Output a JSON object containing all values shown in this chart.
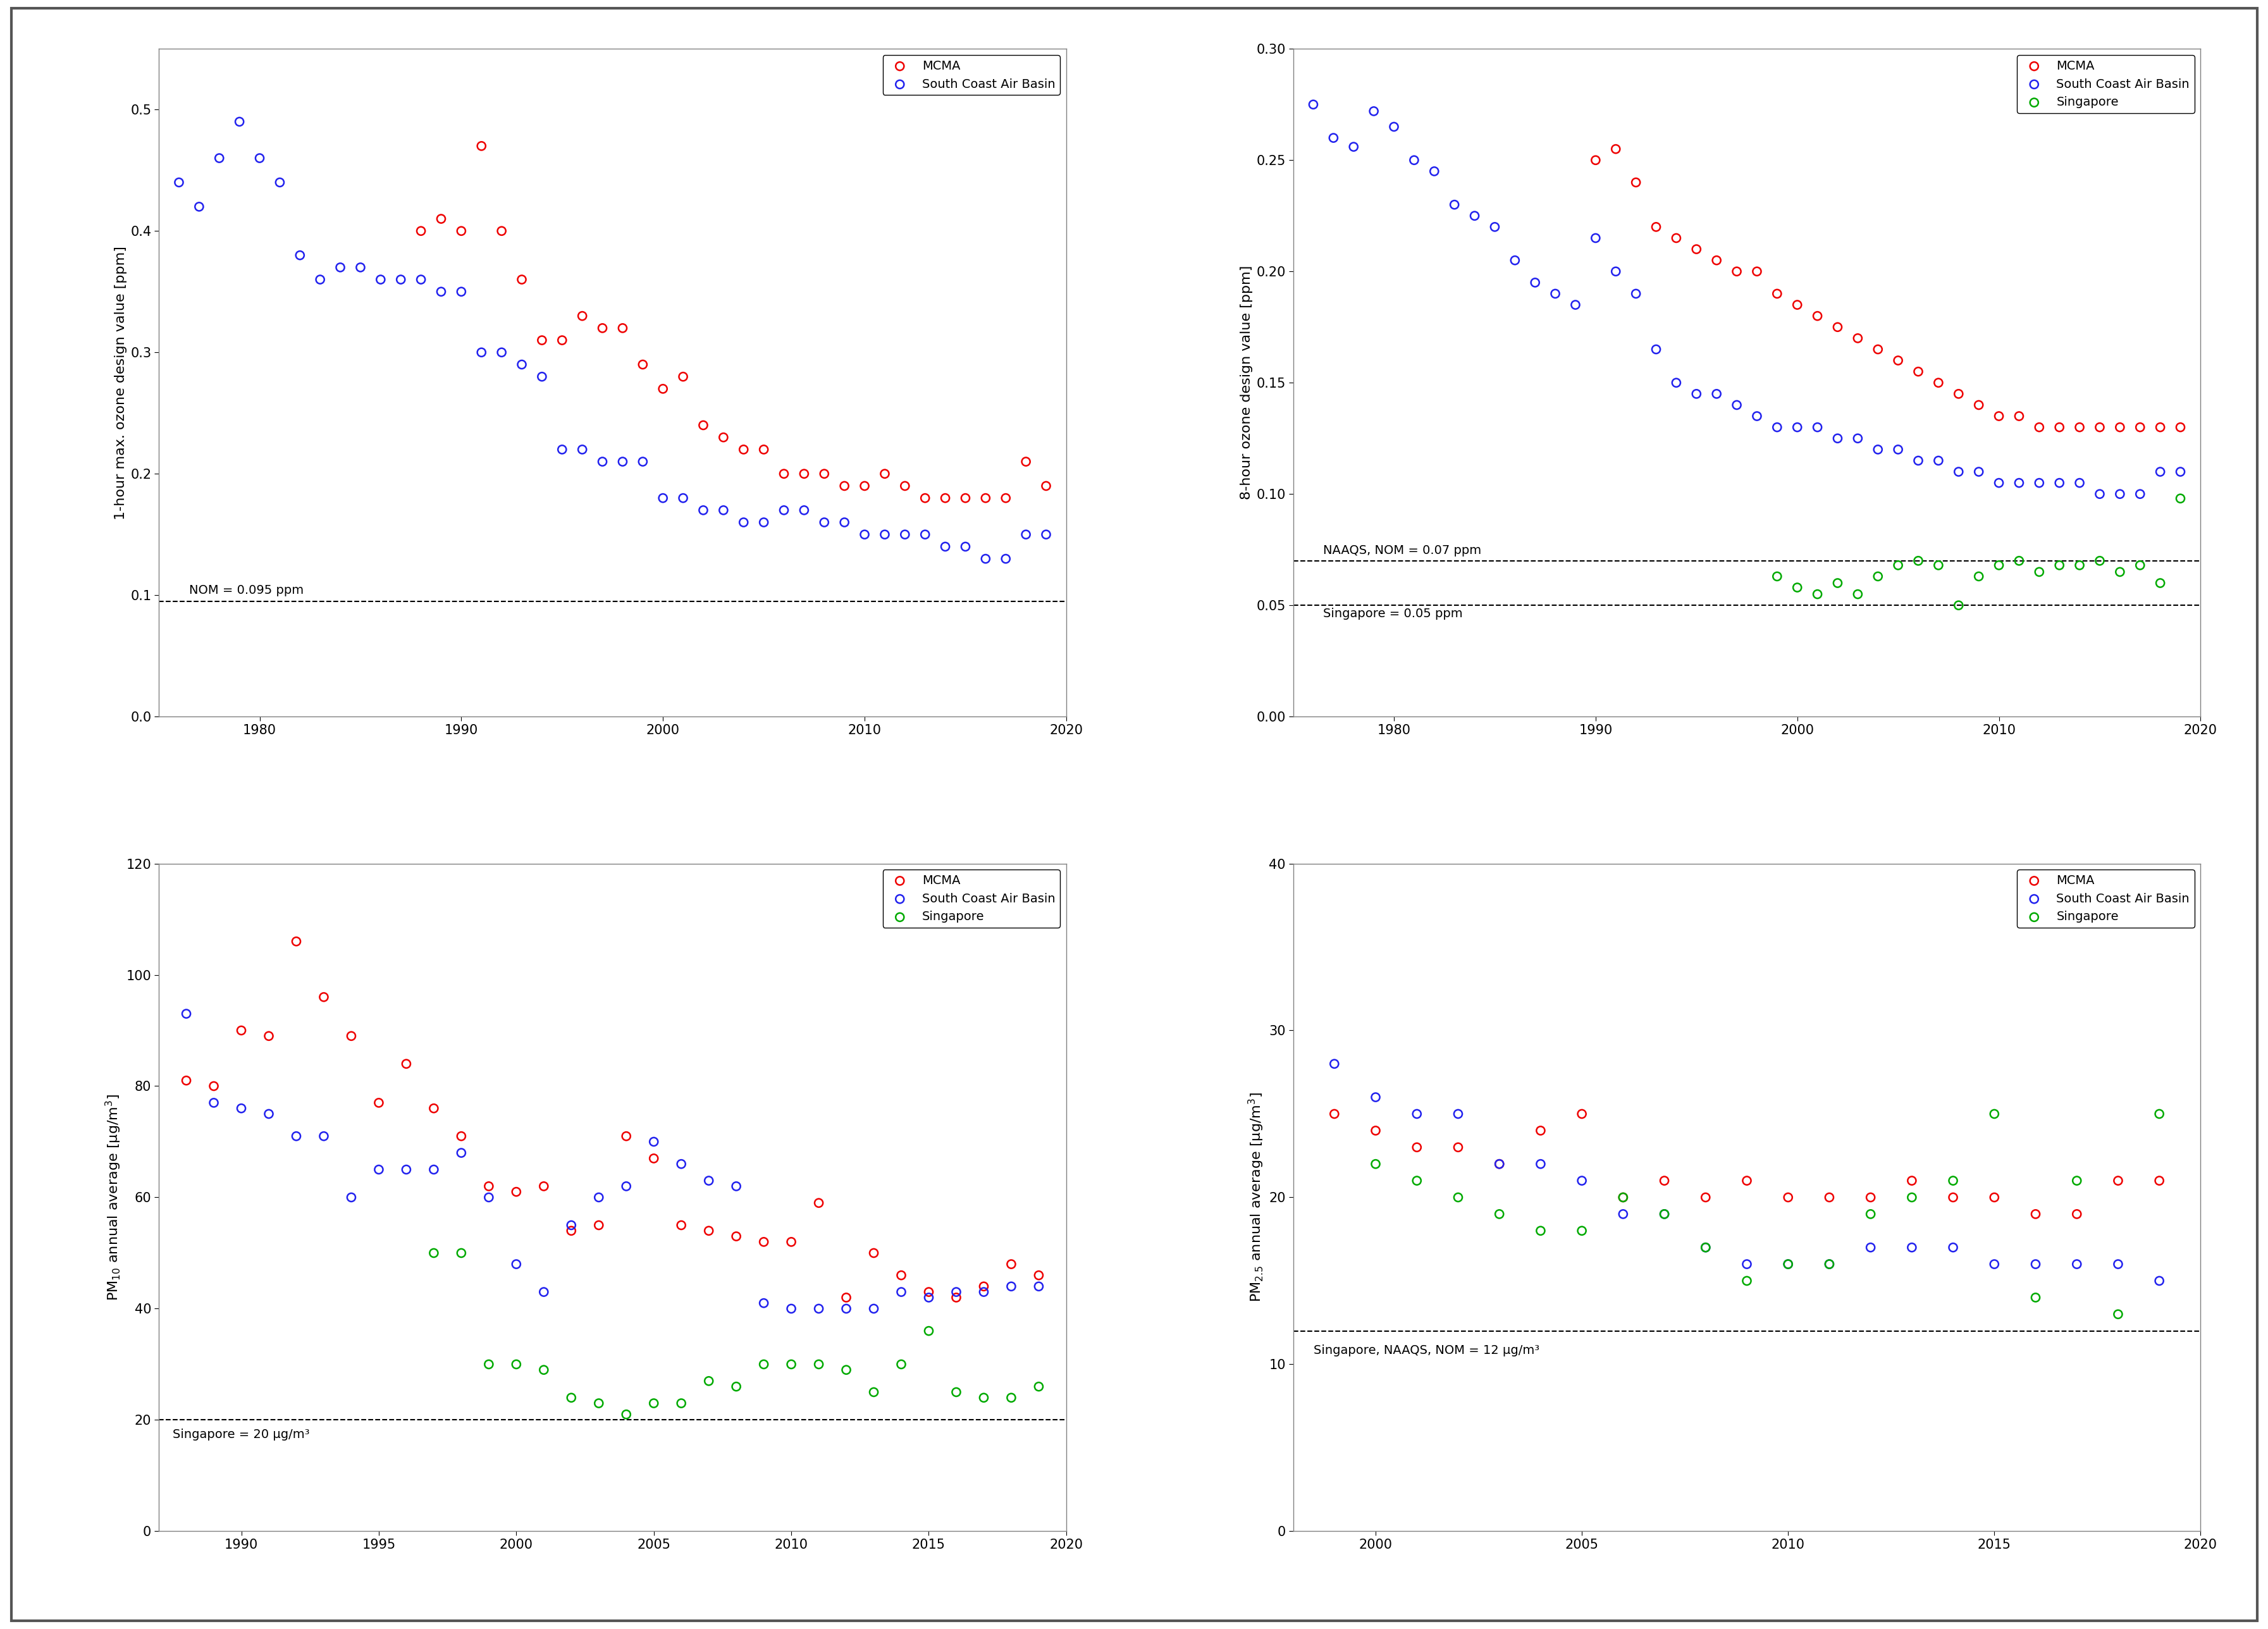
{
  "panel1": {
    "ylabel": "1-hour max. ozone design value [ppm]",
    "xlim": [
      1975,
      2020
    ],
    "ylim": [
      0.0,
      0.55
    ],
    "yticks": [
      0.0,
      0.1,
      0.2,
      0.3,
      0.4,
      0.5
    ],
    "xticks": [
      1980,
      1990,
      2000,
      2010,
      2020
    ],
    "hline": 0.095,
    "hline_label": "NOM = 0.095 ppm",
    "mcma_x": [
      1988,
      1989,
      1990,
      1991,
      1992,
      1993,
      1994,
      1995,
      1996,
      1997,
      1998,
      1999,
      2000,
      2001,
      2002,
      2003,
      2004,
      2005,
      2006,
      2007,
      2008,
      2009,
      2010,
      2011,
      2012,
      2013,
      2014,
      2015,
      2016,
      2017,
      2018,
      2019
    ],
    "mcma_y": [
      0.4,
      0.41,
      0.4,
      0.47,
      0.4,
      0.36,
      0.31,
      0.31,
      0.33,
      0.32,
      0.32,
      0.29,
      0.27,
      0.28,
      0.24,
      0.23,
      0.22,
      0.22,
      0.2,
      0.2,
      0.2,
      0.19,
      0.19,
      0.2,
      0.19,
      0.18,
      0.18,
      0.18,
      0.18,
      0.18,
      0.21,
      0.19
    ],
    "scab_x": [
      1976,
      1977,
      1978,
      1979,
      1980,
      1981,
      1982,
      1983,
      1984,
      1985,
      1986,
      1987,
      1988,
      1989,
      1990,
      1991,
      1992,
      1993,
      1994,
      1995,
      1996,
      1997,
      1998,
      1999,
      2000,
      2001,
      2002,
      2003,
      2004,
      2005,
      2006,
      2007,
      2008,
      2009,
      2010,
      2011,
      2012,
      2013,
      2014,
      2015,
      2016,
      2017,
      2018,
      2019
    ],
    "scab_y": [
      0.44,
      0.42,
      0.46,
      0.49,
      0.46,
      0.44,
      0.38,
      0.36,
      0.37,
      0.37,
      0.36,
      0.36,
      0.36,
      0.35,
      0.35,
      0.3,
      0.3,
      0.29,
      0.28,
      0.22,
      0.22,
      0.21,
      0.21,
      0.21,
      0.18,
      0.18,
      0.17,
      0.17,
      0.16,
      0.16,
      0.17,
      0.17,
      0.16,
      0.16,
      0.15,
      0.15,
      0.15,
      0.15,
      0.14,
      0.14,
      0.13,
      0.13,
      0.15,
      0.15
    ]
  },
  "panel2": {
    "ylabel": "8-hour ozone design value [ppm]",
    "xlim": [
      1975,
      2020
    ],
    "ylim": [
      0.0,
      0.3
    ],
    "yticks": [
      0.0,
      0.05,
      0.1,
      0.15,
      0.2,
      0.25,
      0.3
    ],
    "xticks": [
      1980,
      1990,
      2000,
      2010,
      2020
    ],
    "hline1": 0.07,
    "hline1_label": "NAAQS, NOM = 0.07 ppm",
    "hline2": 0.05,
    "hline2_label": "Singapore = 0.05 ppm",
    "mcma_x": [
      1990,
      1991,
      1992,
      1993,
      1994,
      1995,
      1996,
      1997,
      1998,
      1999,
      2000,
      2001,
      2002,
      2003,
      2004,
      2005,
      2006,
      2007,
      2008,
      2009,
      2010,
      2011,
      2012,
      2013,
      2014,
      2015,
      2016,
      2017,
      2018,
      2019
    ],
    "mcma_y": [
      0.25,
      0.255,
      0.24,
      0.22,
      0.215,
      0.21,
      0.205,
      0.2,
      0.2,
      0.19,
      0.185,
      0.18,
      0.175,
      0.17,
      0.165,
      0.16,
      0.155,
      0.15,
      0.145,
      0.14,
      0.135,
      0.135,
      0.13,
      0.13,
      0.13,
      0.13,
      0.13,
      0.13,
      0.13,
      0.13
    ],
    "scab_x": [
      1976,
      1977,
      1978,
      1979,
      1980,
      1981,
      1982,
      1983,
      1984,
      1985,
      1986,
      1987,
      1988,
      1989,
      1990,
      1991,
      1992,
      1993,
      1994,
      1995,
      1996,
      1997,
      1998,
      1999,
      2000,
      2001,
      2002,
      2003,
      2004,
      2005,
      2006,
      2007,
      2008,
      2009,
      2010,
      2011,
      2012,
      2013,
      2014,
      2015,
      2016,
      2017,
      2018,
      2019
    ],
    "scab_y": [
      0.275,
      0.26,
      0.256,
      0.272,
      0.265,
      0.25,
      0.245,
      0.23,
      0.225,
      0.22,
      0.205,
      0.195,
      0.19,
      0.185,
      0.215,
      0.2,
      0.19,
      0.165,
      0.15,
      0.145,
      0.145,
      0.14,
      0.135,
      0.13,
      0.13,
      0.13,
      0.125,
      0.125,
      0.12,
      0.12,
      0.115,
      0.115,
      0.11,
      0.11,
      0.105,
      0.105,
      0.105,
      0.105,
      0.105,
      0.1,
      0.1,
      0.1,
      0.11,
      0.11
    ],
    "sing_x": [
      1999,
      2000,
      2001,
      2002,
      2003,
      2004,
      2005,
      2006,
      2007,
      2008,
      2009,
      2010,
      2011,
      2012,
      2013,
      2014,
      2015,
      2016,
      2017,
      2018,
      2019
    ],
    "sing_y": [
      0.063,
      0.058,
      0.055,
      0.06,
      0.055,
      0.063,
      0.068,
      0.07,
      0.068,
      0.05,
      0.063,
      0.068,
      0.07,
      0.065,
      0.068,
      0.068,
      0.07,
      0.065,
      0.068,
      0.06,
      0.098
    ]
  },
  "panel3": {
    "ylabel": "PM$_{10}$ annual average [μg/m$^3$]",
    "xlim": [
      1987,
      2020
    ],
    "ylim": [
      0,
      120
    ],
    "yticks": [
      0,
      20,
      40,
      60,
      80,
      100,
      120
    ],
    "xticks": [
      1990,
      1995,
      2000,
      2005,
      2010,
      2015,
      2020
    ],
    "hline": 20,
    "hline_label": "Singapore = 20 μg/m³",
    "mcma_x": [
      1988,
      1989,
      1990,
      1991,
      1992,
      1993,
      1994,
      1995,
      1996,
      1997,
      1998,
      1999,
      2000,
      2001,
      2002,
      2003,
      2004,
      2005,
      2006,
      2007,
      2008,
      2009,
      2010,
      2011,
      2012,
      2013,
      2014,
      2015,
      2016,
      2017,
      2018,
      2019
    ],
    "mcma_y": [
      81,
      80,
      90,
      89,
      106,
      96,
      89,
      77,
      84,
      76,
      71,
      62,
      61,
      62,
      54,
      55,
      71,
      67,
      55,
      54,
      53,
      52,
      52,
      59,
      42,
      50,
      46,
      43,
      42,
      44,
      48,
      46
    ],
    "scab_x": [
      1988,
      1989,
      1990,
      1991,
      1992,
      1993,
      1994,
      1995,
      1996,
      1997,
      1998,
      1999,
      2000,
      2001,
      2002,
      2003,
      2004,
      2005,
      2006,
      2007,
      2008,
      2009,
      2010,
      2011,
      2012,
      2013,
      2014,
      2015,
      2016,
      2017,
      2018,
      2019
    ],
    "scab_y": [
      93,
      77,
      76,
      75,
      71,
      71,
      60,
      65,
      65,
      65,
      68,
      60,
      48,
      43,
      55,
      60,
      62,
      70,
      66,
      63,
      62,
      41,
      40,
      40,
      40,
      40,
      43,
      42,
      43,
      43,
      44,
      44
    ],
    "sing_x": [
      1997,
      1998,
      1999,
      2000,
      2001,
      2002,
      2003,
      2004,
      2005,
      2006,
      2007,
      2008,
      2009,
      2010,
      2011,
      2012,
      2013,
      2014,
      2015,
      2016,
      2017,
      2018,
      2019
    ],
    "sing_y": [
      50,
      50,
      30,
      30,
      29,
      24,
      23,
      21,
      23,
      23,
      27,
      26,
      30,
      30,
      30,
      29,
      25,
      30,
      36,
      25,
      24,
      24,
      26
    ]
  },
  "panel4": {
    "ylabel": "PM$_{2.5}$ annual average [μg/m$^3$]",
    "xlim": [
      1998,
      2020
    ],
    "ylim": [
      0,
      40
    ],
    "yticks": [
      0,
      10,
      20,
      30,
      40
    ],
    "xticks": [
      2000,
      2005,
      2010,
      2015,
      2020
    ],
    "hline": 12,
    "hline_label": "Singapore, NAAQS, NOM = 12 μg/m³",
    "mcma_x": [
      1999,
      2000,
      2001,
      2002,
      2003,
      2004,
      2005,
      2006,
      2007,
      2008,
      2009,
      2010,
      2011,
      2012,
      2013,
      2014,
      2015,
      2016,
      2017,
      2018,
      2019
    ],
    "mcma_y": [
      25,
      24,
      23,
      23,
      22,
      24,
      25,
      20,
      21,
      20,
      21,
      20,
      20,
      20,
      21,
      20,
      20,
      19,
      19,
      21,
      21
    ],
    "scab_x": [
      1999,
      2000,
      2001,
      2002,
      2003,
      2004,
      2005,
      2006,
      2007,
      2008,
      2009,
      2010,
      2011,
      2012,
      2013,
      2014,
      2015,
      2016,
      2017,
      2018,
      2019
    ],
    "scab_y": [
      28,
      26,
      25,
      25,
      22,
      22,
      21,
      19,
      19,
      17,
      16,
      16,
      16,
      17,
      17,
      17,
      16,
      16,
      16,
      16,
      15
    ],
    "sing_x": [
      2000,
      2001,
      2002,
      2003,
      2004,
      2005,
      2006,
      2007,
      2008,
      2009,
      2010,
      2011,
      2012,
      2013,
      2014,
      2015,
      2016,
      2017,
      2018,
      2019
    ],
    "sing_y": [
      22,
      21,
      20,
      19,
      18,
      18,
      20,
      19,
      17,
      15,
      16,
      16,
      19,
      20,
      21,
      25,
      14,
      21,
      13,
      25
    ]
  },
  "colors": {
    "mcma": "#EE0000",
    "scab": "#2222EE",
    "sing": "#00AA00"
  },
  "fig_bg": "#CCCCCC",
  "panel_bg": "white",
  "border_color": "#888888"
}
